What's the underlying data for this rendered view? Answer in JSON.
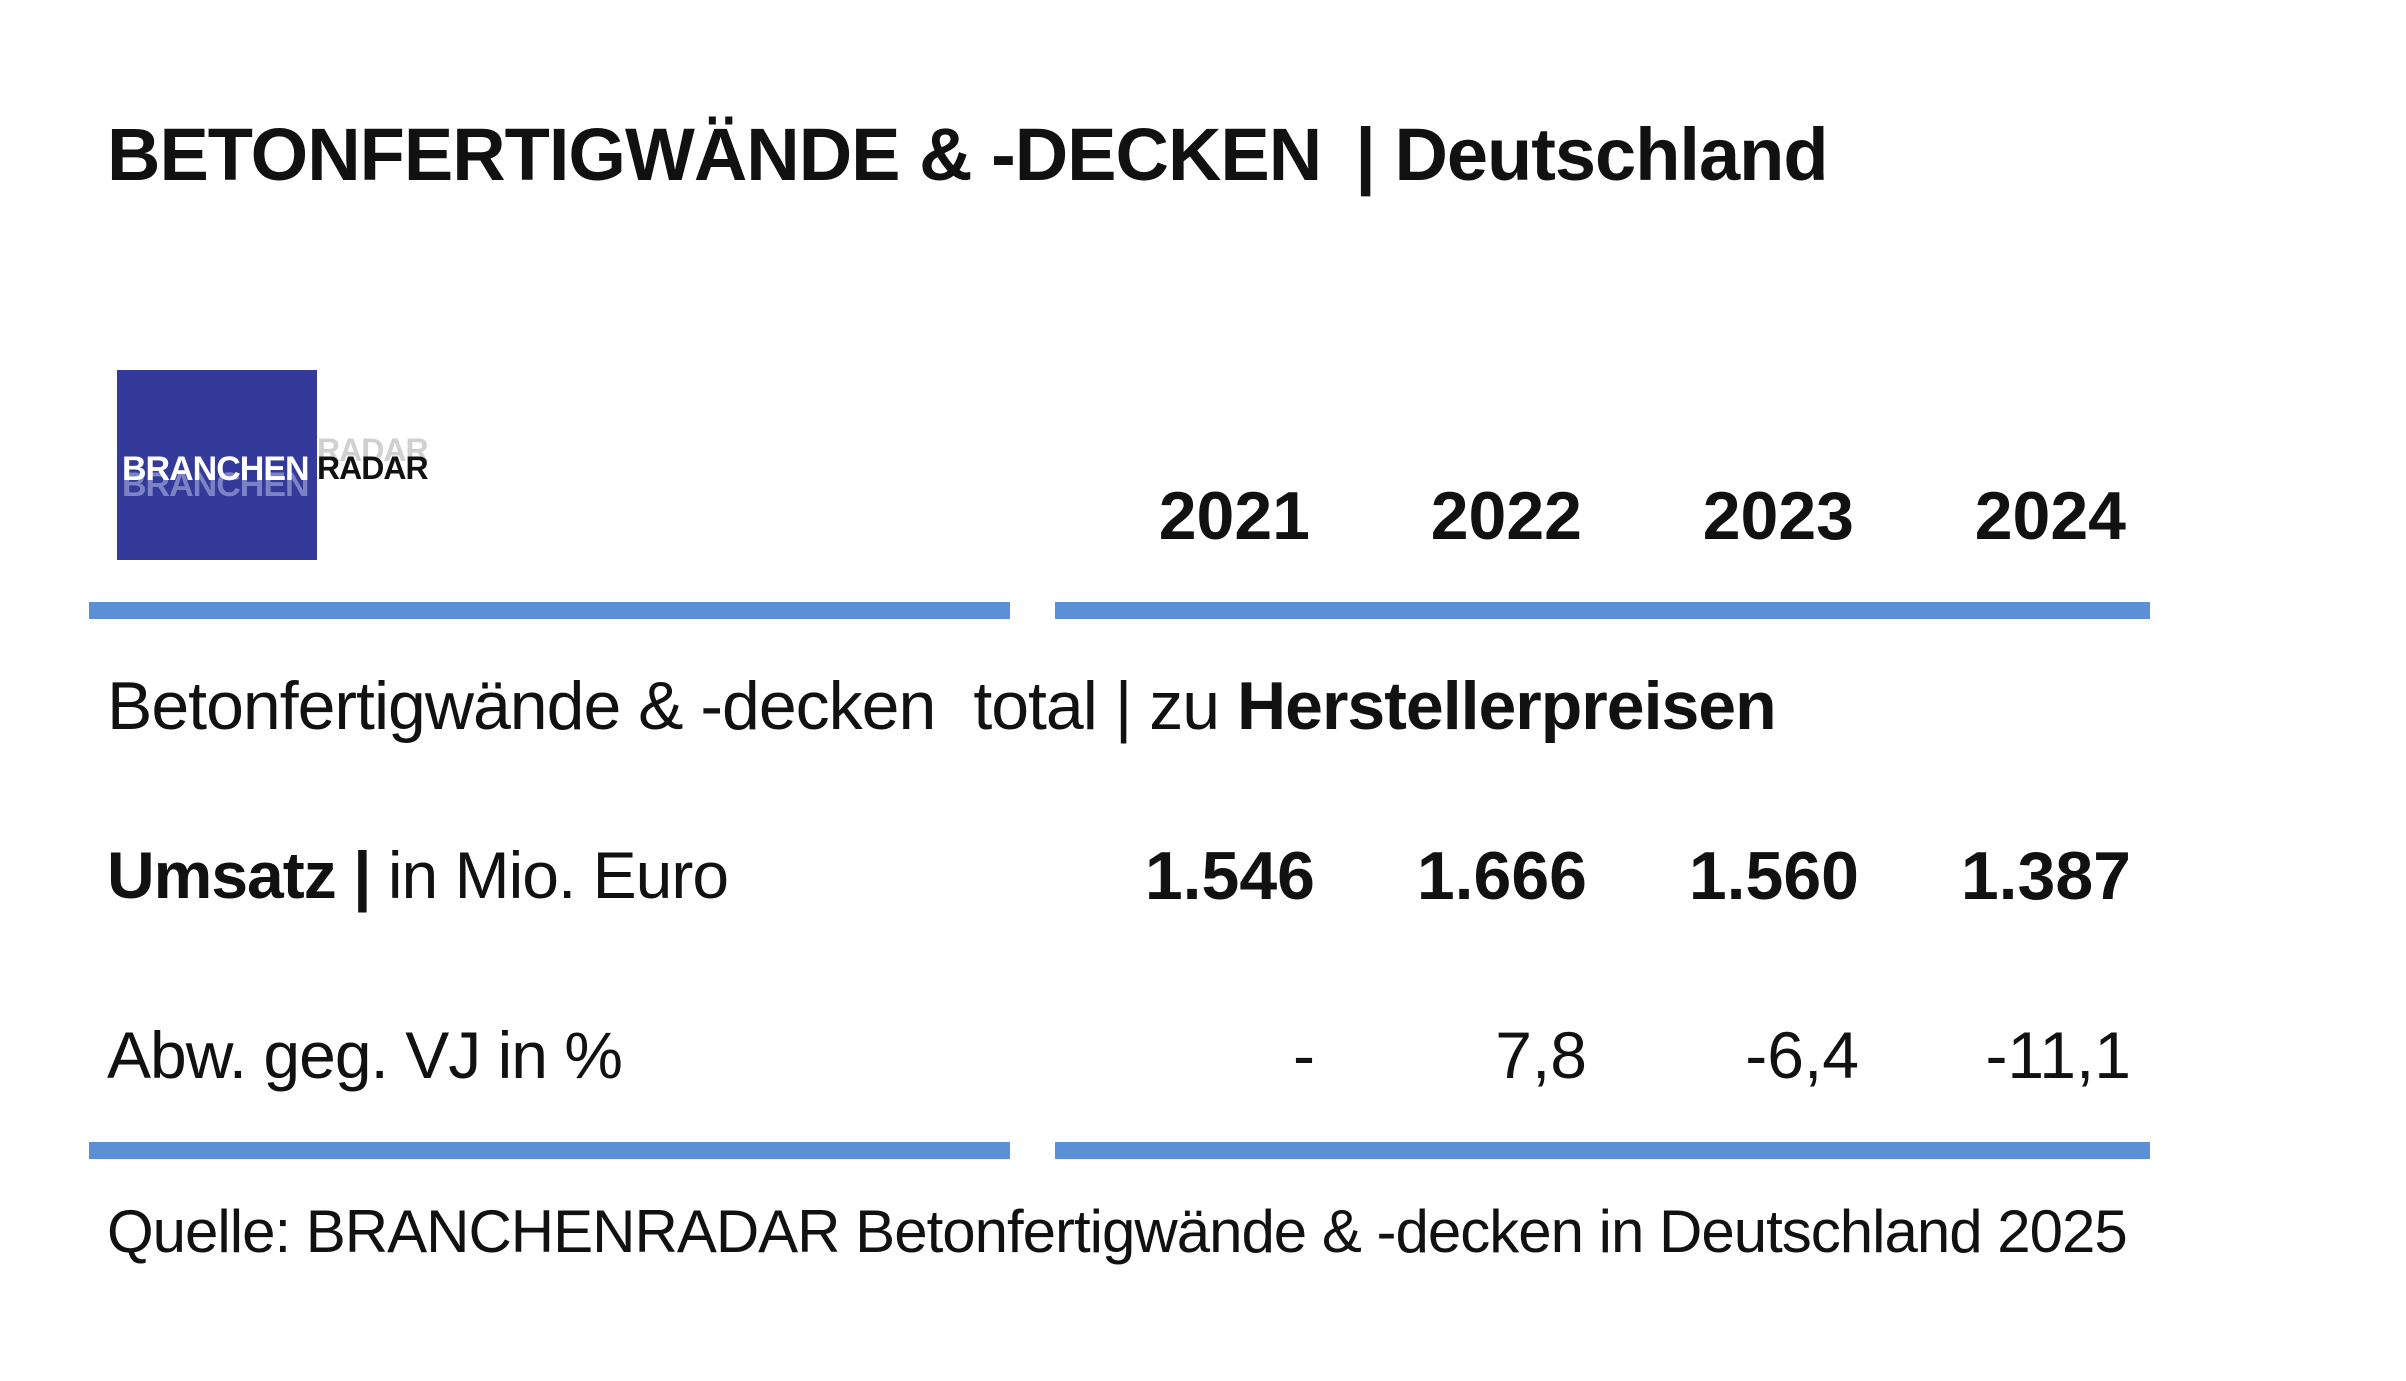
{
  "title": {
    "main": "BETONFERTIGWÄNDE & -DECKEN",
    "sep": "| Deutschland"
  },
  "logo": {
    "part1": "BRANCHEN",
    "part2": "RADAR"
  },
  "years": [
    "2021",
    "2022",
    "2023",
    "2024"
  ],
  "section": {
    "prefix": "Betonfertigwände & -decken",
    "middle": "total | zu",
    "bold": "Herstellerpreisen"
  },
  "rows": [
    {
      "label_bold": "Umsatz |",
      "label": "in Mio. Euro",
      "values": [
        "1.546",
        "1.666",
        "1.560",
        "1.387"
      ]
    },
    {
      "label_bold": "",
      "label": "Abw. geg. VJ in %",
      "values": [
        "-",
        "7,8",
        "-6,4",
        "-11,1"
      ]
    }
  ],
  "source": "Quelle: BRANCHENRADAR Betonfertigwände & -decken  in Deutschland 2025",
  "colors": {
    "rule": "#5b8fd6",
    "logo_bg": "#333a9a"
  }
}
